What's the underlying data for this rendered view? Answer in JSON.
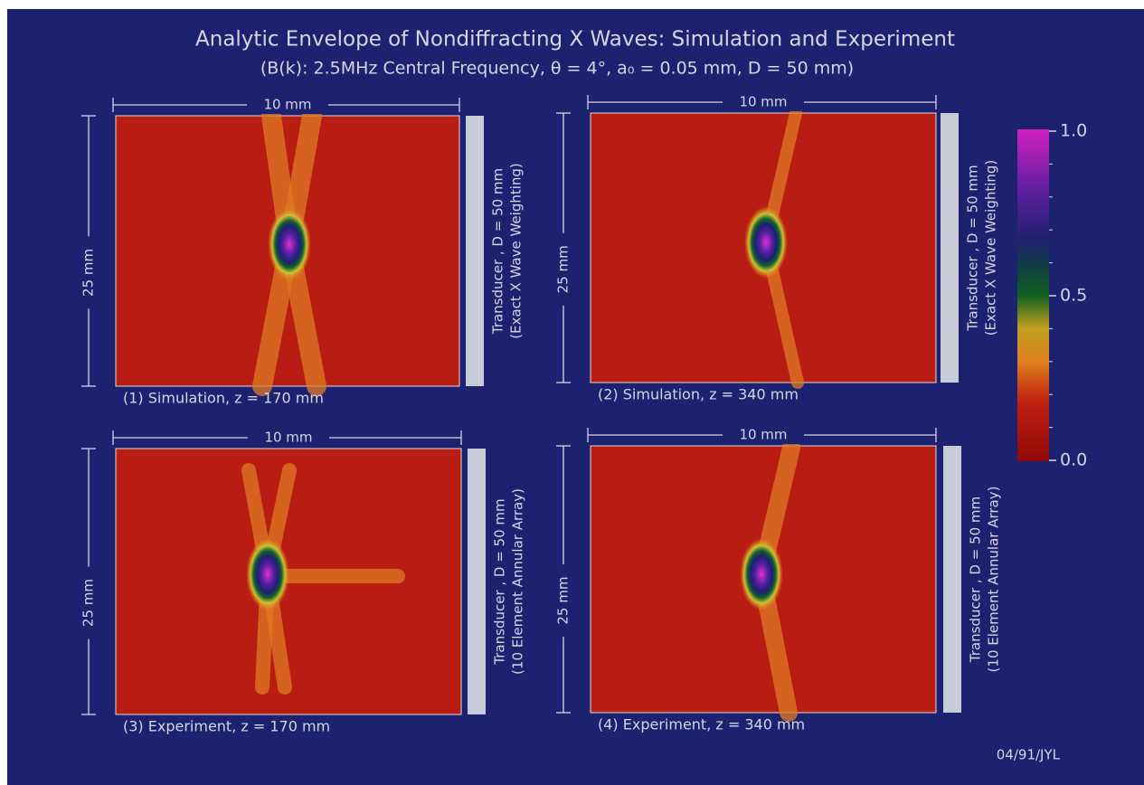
{
  "header": {
    "title": "Analytic Envelope of Nondiffracting X Waves: Simulation and Experiment",
    "subtitle": "(B(k): 2.5MHz  Central Frequency,  θ = 4°,  a₀ = 0.05 mm,  D = 50 mm)"
  },
  "panels": [
    {
      "width_label": "10 mm",
      "height_label": "25 mm",
      "caption": "(1)  Simulation,  z = 170 mm",
      "transducer": [
        "Transducer , D = 50 mm",
        "(Exact X Wave Weighting)"
      ]
    },
    {
      "width_label": "10 mm",
      "height_label": "25 mm",
      "caption": "(2)  Simulation,  z = 340 mm",
      "transducer": [
        "Transducer , D = 50 mm",
        "(Exact X Wave Weighting)"
      ]
    },
    {
      "width_label": "10 mm",
      "height_label": "25 mm",
      "caption": "(3)  Experiment,  z = 170 mm",
      "transducer": [
        "Transducer , D = 50 mm",
        "(10 Element Annular Array)"
      ]
    },
    {
      "width_label": "10 mm",
      "height_label": "25 mm",
      "caption": "(4) Experiment,  z = 340 mm",
      "transducer": [
        "Transducer , D = 50 mm",
        "(10 Element Annular Array)"
      ]
    }
  ],
  "colorbar": {
    "ticks": [
      "1.0",
      "0.5",
      "0.0"
    ]
  },
  "footer": "04/91/JYL"
}
